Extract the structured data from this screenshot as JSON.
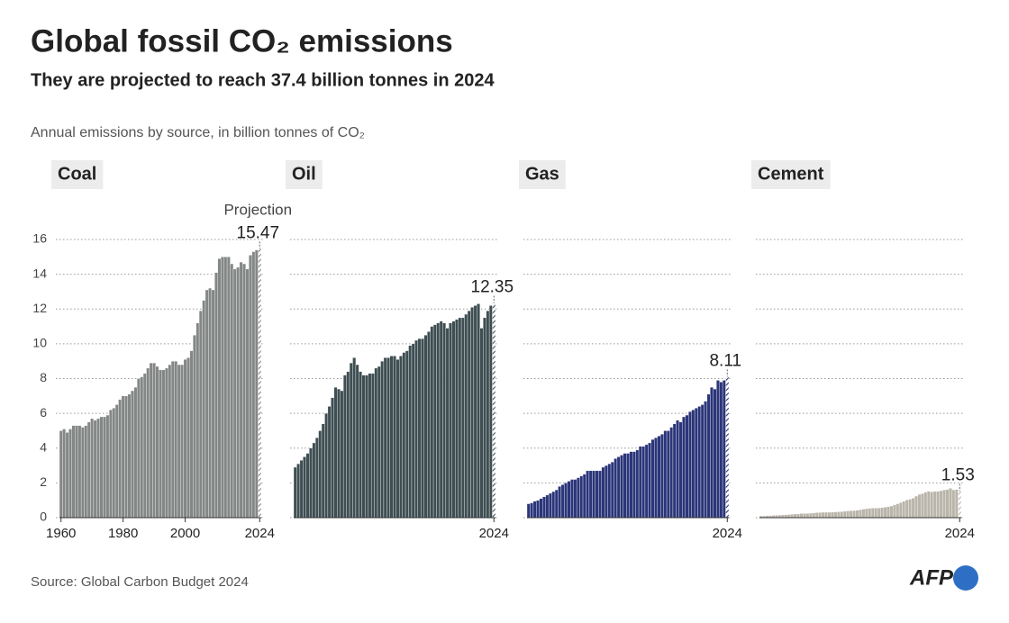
{
  "header": {
    "title": "Global fossil CO₂ emissions",
    "subtitle": "They are projected to reach 37.4 billion tonnes in 2024",
    "note": "Annual emissions by source, in billion tonnes of CO₂"
  },
  "footer": {
    "source": "Source: Global Carbon Budget 2024",
    "logo": "AFP"
  },
  "chart_data": [
    {
      "type": "bar",
      "title": "Coal",
      "color": "#838785",
      "annotation": "Projection",
      "projection_last": true,
      "show_ytick_labels": true,
      "x": [
        1960,
        1961,
        1962,
        1963,
        1964,
        1965,
        1966,
        1967,
        1968,
        1969,
        1970,
        1971,
        1972,
        1973,
        1974,
        1975,
        1976,
        1977,
        1978,
        1979,
        1980,
        1981,
        1982,
        1983,
        1984,
        1985,
        1986,
        1987,
        1988,
        1989,
        1990,
        1991,
        1992,
        1993,
        1994,
        1995,
        1996,
        1997,
        1998,
        1999,
        2000,
        2001,
        2002,
        2003,
        2004,
        2005,
        2006,
        2007,
        2008,
        2009,
        2010,
        2011,
        2012,
        2013,
        2014,
        2015,
        2016,
        2017,
        2018,
        2019,
        2020,
        2021,
        2022,
        2023,
        2024
      ],
      "values": [
        5.0,
        5.1,
        4.9,
        5.1,
        5.3,
        5.3,
        5.3,
        5.2,
        5.3,
        5.5,
        5.7,
        5.6,
        5.7,
        5.8,
        5.8,
        5.9,
        6.2,
        6.3,
        6.5,
        6.8,
        7.0,
        7.0,
        7.1,
        7.3,
        7.5,
        8.0,
        8.1,
        8.3,
        8.6,
        8.9,
        8.9,
        8.7,
        8.5,
        8.5,
        8.6,
        8.8,
        9.0,
        9.0,
        8.8,
        8.8,
        9.1,
        9.2,
        9.6,
        10.5,
        11.2,
        11.9,
        12.5,
        13.1,
        13.2,
        13.1,
        14.1,
        14.9,
        15.0,
        15.0,
        15.0,
        14.6,
        14.3,
        14.4,
        14.7,
        14.6,
        14.3,
        15.1,
        15.3,
        15.4,
        15.47
      ],
      "xticks": [
        1960,
        1980,
        2000,
        2024
      ],
      "ylim": [
        0,
        16
      ],
      "yticks": [
        0,
        2,
        4,
        6,
        8,
        10,
        12,
        14,
        16
      ],
      "grid": true
    },
    {
      "type": "bar",
      "title": "Oil",
      "color": "#3e4e52",
      "projection_last": true,
      "show_ytick_labels": false,
      "x": [
        1960,
        1961,
        1962,
        1963,
        1964,
        1965,
        1966,
        1967,
        1968,
        1969,
        1970,
        1971,
        1972,
        1973,
        1974,
        1975,
        1976,
        1977,
        1978,
        1979,
        1980,
        1981,
        1982,
        1983,
        1984,
        1985,
        1986,
        1987,
        1988,
        1989,
        1990,
        1991,
        1992,
        1993,
        1994,
        1995,
        1996,
        1997,
        1998,
        1999,
        2000,
        2001,
        2002,
        2003,
        2004,
        2005,
        2006,
        2007,
        2008,
        2009,
        2010,
        2011,
        2012,
        2013,
        2014,
        2015,
        2016,
        2017,
        2018,
        2019,
        2020,
        2021,
        2022,
        2023,
        2024
      ],
      "values": [
        2.9,
        3.1,
        3.3,
        3.5,
        3.7,
        4.0,
        4.3,
        4.6,
        5.0,
        5.4,
        6.0,
        6.4,
        6.9,
        7.5,
        7.4,
        7.3,
        8.2,
        8.4,
        8.9,
        9.2,
        8.8,
        8.4,
        8.2,
        8.2,
        8.3,
        8.3,
        8.6,
        8.7,
        9.0,
        9.2,
        9.2,
        9.3,
        9.3,
        9.1,
        9.3,
        9.5,
        9.6,
        9.9,
        10.0,
        10.2,
        10.3,
        10.3,
        10.5,
        10.7,
        11.0,
        11.1,
        11.2,
        11.3,
        11.2,
        10.9,
        11.2,
        11.3,
        11.4,
        11.5,
        11.5,
        11.7,
        11.9,
        12.1,
        12.2,
        12.3,
        10.9,
        11.5,
        11.9,
        12.2,
        12.35
      ],
      "xticks": [
        2024
      ],
      "ylim": [
        0,
        16
      ],
      "yticks": [
        0,
        2,
        4,
        6,
        8,
        10,
        12,
        14,
        16
      ],
      "grid": true
    },
    {
      "type": "bar",
      "title": "Gas",
      "color": "#2b3579",
      "projection_last": true,
      "show_ytick_labels": false,
      "x": [
        1960,
        1961,
        1962,
        1963,
        1964,
        1965,
        1966,
        1967,
        1968,
        1969,
        1970,
        1971,
        1972,
        1973,
        1974,
        1975,
        1976,
        1977,
        1978,
        1979,
        1980,
        1981,
        1982,
        1983,
        1984,
        1985,
        1986,
        1987,
        1988,
        1989,
        1990,
        1991,
        1992,
        1993,
        1994,
        1995,
        1996,
        1997,
        1998,
        1999,
        2000,
        2001,
        2002,
        2003,
        2004,
        2005,
        2006,
        2007,
        2008,
        2009,
        2010,
        2011,
        2012,
        2013,
        2014,
        2015,
        2016,
        2017,
        2018,
        2019,
        2020,
        2021,
        2022,
        2023,
        2024
      ],
      "values": [
        0.8,
        0.85,
        0.95,
        1.0,
        1.1,
        1.2,
        1.3,
        1.4,
        1.5,
        1.6,
        1.8,
        1.9,
        2.0,
        2.1,
        2.2,
        2.2,
        2.3,
        2.4,
        2.5,
        2.7,
        2.7,
        2.7,
        2.7,
        2.7,
        2.9,
        3.0,
        3.1,
        3.2,
        3.4,
        3.5,
        3.6,
        3.7,
        3.7,
        3.8,
        3.8,
        3.9,
        4.1,
        4.1,
        4.2,
        4.3,
        4.5,
        4.6,
        4.7,
        4.8,
        5.0,
        5.0,
        5.2,
        5.4,
        5.6,
        5.5,
        5.8,
        5.9,
        6.1,
        6.2,
        6.3,
        6.4,
        6.5,
        6.7,
        7.1,
        7.5,
        7.4,
        7.9,
        7.8,
        7.9,
        8.11
      ],
      "xticks": [
        2024
      ],
      "ylim": [
        0,
        16
      ],
      "yticks": [
        0,
        2,
        4,
        6,
        8,
        10,
        12,
        14,
        16
      ],
      "grid": true
    },
    {
      "type": "bar",
      "title": "Cement",
      "color": "#bab5aa",
      "projection_last": true,
      "show_ytick_labels": false,
      "x": [
        1960,
        1961,
        1962,
        1963,
        1964,
        1965,
        1966,
        1967,
        1968,
        1969,
        1970,
        1971,
        1972,
        1973,
        1974,
        1975,
        1976,
        1977,
        1978,
        1979,
        1980,
        1981,
        1982,
        1983,
        1984,
        1985,
        1986,
        1987,
        1988,
        1989,
        1990,
        1991,
        1992,
        1993,
        1994,
        1995,
        1996,
        1997,
        1998,
        1999,
        2000,
        2001,
        2002,
        2003,
        2004,
        2005,
        2006,
        2007,
        2008,
        2009,
        2010,
        2011,
        2012,
        2013,
        2014,
        2015,
        2016,
        2017,
        2018,
        2019,
        2020,
        2021,
        2022,
        2023,
        2024
      ],
      "values": [
        0.1,
        0.1,
        0.11,
        0.12,
        0.13,
        0.14,
        0.15,
        0.16,
        0.17,
        0.18,
        0.2,
        0.21,
        0.22,
        0.24,
        0.24,
        0.24,
        0.26,
        0.27,
        0.29,
        0.3,
        0.31,
        0.31,
        0.31,
        0.32,
        0.33,
        0.34,
        0.35,
        0.37,
        0.39,
        0.4,
        0.41,
        0.43,
        0.46,
        0.49,
        0.52,
        0.54,
        0.55,
        0.56,
        0.56,
        0.58,
        0.6,
        0.63,
        0.67,
        0.74,
        0.8,
        0.87,
        0.95,
        1.02,
        1.06,
        1.12,
        1.24,
        1.34,
        1.39,
        1.47,
        1.52,
        1.48,
        1.51,
        1.52,
        1.55,
        1.6,
        1.62,
        1.69,
        1.6,
        1.62,
        1.53
      ],
      "xticks": [
        2024
      ],
      "ylim": [
        0,
        16
      ],
      "yticks": [
        0,
        2,
        4,
        6,
        8,
        10,
        12,
        14,
        16
      ],
      "grid": true
    }
  ]
}
